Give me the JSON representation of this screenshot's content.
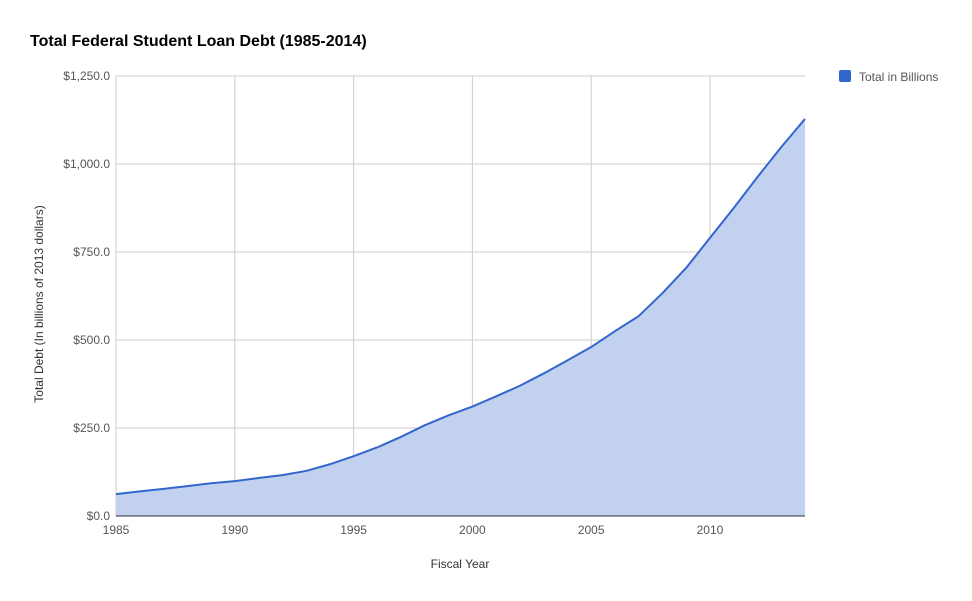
{
  "chart_data": {
    "type": "area",
    "title": "Total Federal Student Loan Debt (1985-2014)",
    "xlabel": "Fiscal Year",
    "ylabel": "Total Debt (In billions of 2013 dollars)",
    "xlim": [
      1985,
      2014
    ],
    "ylim": [
      0,
      1250
    ],
    "x_ticks": [
      1985,
      1990,
      1995,
      2000,
      2005,
      2010
    ],
    "x_tick_labels": [
      "1985",
      "1990",
      "1995",
      "2000",
      "2005",
      "2010"
    ],
    "y_ticks": [
      0,
      250,
      500,
      750,
      1000,
      1250
    ],
    "y_tick_labels": [
      "$0.0",
      "$250.0",
      "$500.0",
      "$750.0",
      "$1,000.0",
      "$1,250.0"
    ],
    "grid": true,
    "legend_position": "top-right",
    "x": [
      1985,
      1986,
      1987,
      1988,
      1989,
      1990,
      1991,
      1992,
      1993,
      1994,
      1995,
      1996,
      1997,
      1998,
      1999,
      2000,
      2001,
      2002,
      2003,
      2004,
      2005,
      2006,
      2007,
      2008,
      2009,
      2010,
      2011,
      2012,
      2013,
      2014
    ],
    "series": [
      {
        "name": "Total in Billions",
        "color": "#3366cc",
        "fill": "#c2d1ef",
        "values": [
          62,
          70,
          77,
          85,
          93,
          99,
          108,
          116,
          128,
          147,
          170,
          195,
          225,
          258,
          286,
          311,
          340,
          370,
          405,
          442,
          480,
          525,
          568,
          633,
          705,
          790,
          875,
          963,
          1048,
          1128
        ]
      }
    ]
  }
}
